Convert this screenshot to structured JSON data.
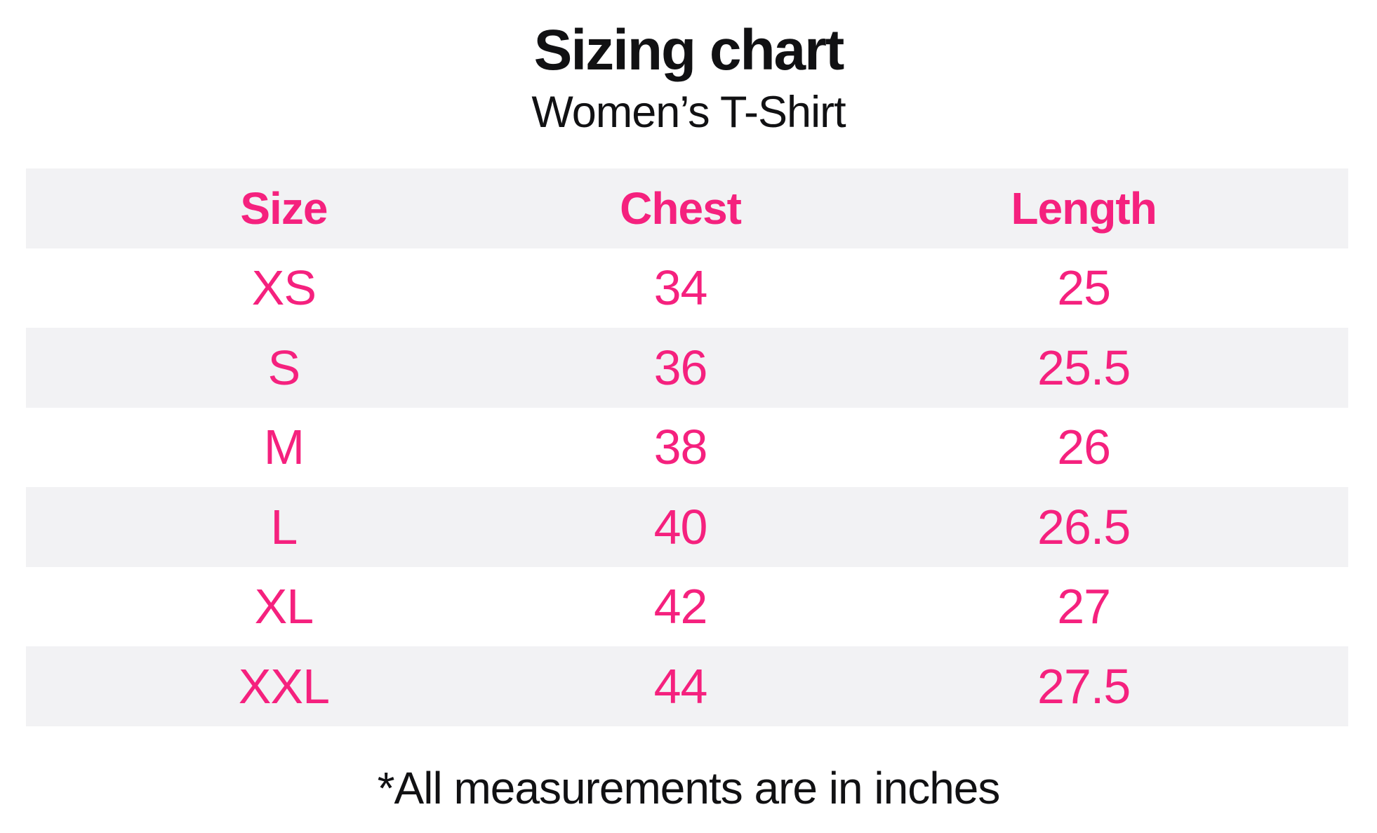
{
  "page": {
    "title": "Sizing chart",
    "subtitle": "Women’s T-Shirt",
    "footnote": "*All measurements are in inches"
  },
  "table": {
    "headers": {
      "size": "Size",
      "chest": "Chest",
      "length": "Length"
    },
    "rows": [
      {
        "size": "XS",
        "chest": "34",
        "length": "25"
      },
      {
        "size": "S",
        "chest": "36",
        "length": "25.5"
      },
      {
        "size": "M",
        "chest": "38",
        "length": "26"
      },
      {
        "size": "L",
        "chest": "40",
        "length": "26.5"
      },
      {
        "size": "XL",
        "chest": "42",
        "length": "27"
      },
      {
        "size": "XXL",
        "chest": "44",
        "length": "27.5"
      }
    ]
  },
  "chart_data": {
    "type": "table",
    "title": "Sizing chart",
    "subtitle": "Women’s T-Shirt",
    "columns": [
      "Size",
      "Chest",
      "Length"
    ],
    "rows": [
      [
        "XS",
        34,
        25
      ],
      [
        "S",
        36,
        25.5
      ],
      [
        "M",
        38,
        26
      ],
      [
        "L",
        40,
        26.5
      ],
      [
        "XL",
        42,
        27
      ],
      [
        "XXL",
        44,
        27.5
      ]
    ],
    "units": "inches",
    "footnote": "*All measurements are in inches",
    "layout": {
      "striped_rows": true,
      "stripe_color": "#F2F2F4",
      "text_color": "#F5217E"
    }
  },
  "colors": {
    "accent_pink": "#F5217E",
    "row_stripe": "#F2F2F4",
    "text_black": "#111113",
    "background": "#FFFFFF"
  }
}
